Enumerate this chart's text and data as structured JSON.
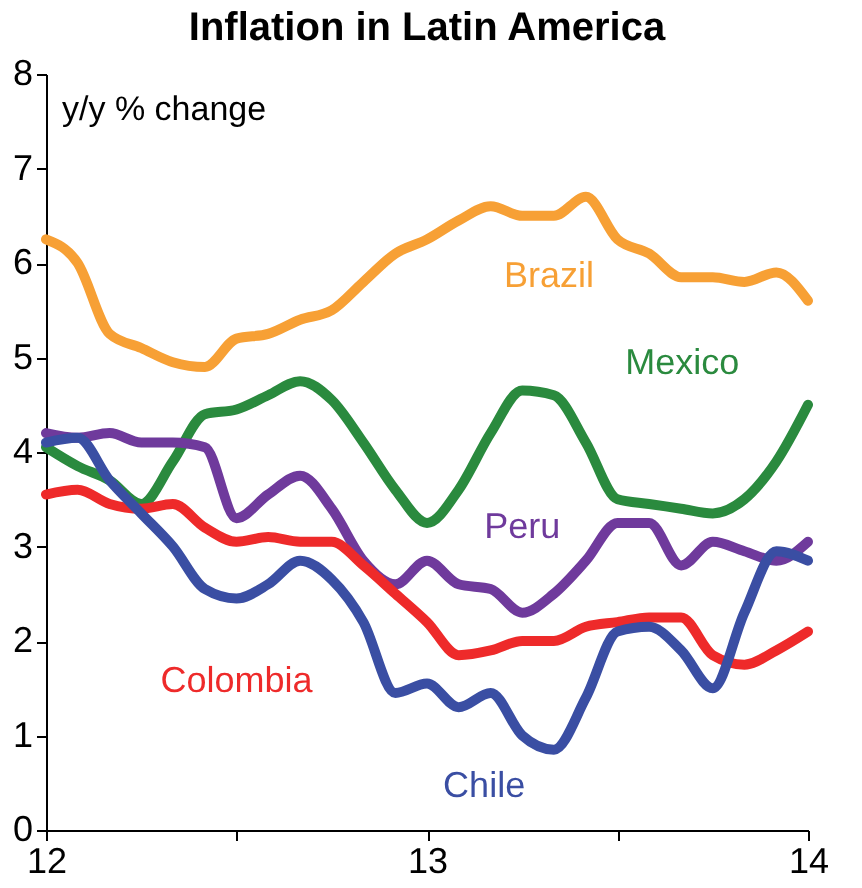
{
  "chart_data": {
    "type": "line",
    "title": "Inflation in Latin America",
    "ylabel": "y/y % change",
    "x": [
      12,
      12.083,
      12.167,
      12.25,
      12.333,
      12.417,
      12.5,
      12.583,
      12.667,
      12.75,
      12.833,
      12.917,
      13,
      13.083,
      13.167,
      13.25,
      13.333,
      13.417,
      13.5,
      13.583,
      13.667,
      13.75,
      13.833,
      13.917,
      14
    ],
    "series": [
      {
        "name": "Brazil",
        "color": "#f7a035",
        "values": [
          6.25,
          6.0,
          5.25,
          5.1,
          4.95,
          4.9,
          5.2,
          5.25,
          5.4,
          5.5,
          5.8,
          6.1,
          6.25,
          6.45,
          6.6,
          6.5,
          6.5,
          6.7,
          6.25,
          6.1,
          5.85,
          5.85,
          5.8,
          5.9,
          5.6
        ]
      },
      {
        "name": "Mexico",
        "color": "#2a8a3e",
        "values": [
          4.05,
          3.85,
          3.7,
          3.45,
          3.9,
          4.4,
          4.45,
          4.6,
          4.75,
          4.55,
          4.1,
          3.6,
          3.25,
          3.6,
          4.2,
          4.65,
          4.6,
          4.1,
          3.5,
          3.45,
          3.4,
          3.35,
          3.5,
          3.9,
          4.5
        ]
      },
      {
        "name": "Peru",
        "color": "#6f3a9c",
        "values": [
          4.2,
          4.15,
          4.2,
          4.1,
          4.1,
          4.05,
          3.3,
          3.55,
          3.75,
          3.4,
          2.85,
          2.6,
          2.85,
          2.6,
          2.55,
          2.3,
          2.5,
          2.85,
          3.25,
          3.25,
          2.8,
          3.05,
          2.95,
          2.85,
          3.05
        ]
      },
      {
        "name": "Colombia",
        "color": "#ee2a2a",
        "values": [
          3.55,
          3.6,
          3.45,
          3.4,
          3.45,
          3.2,
          3.05,
          3.1,
          3.05,
          3.05,
          2.8,
          2.5,
          2.2,
          1.85,
          1.9,
          2.0,
          2.0,
          2.15,
          2.2,
          2.25,
          2.25,
          1.85,
          1.75,
          1.9,
          2.1
        ]
      },
      {
        "name": "Chile",
        "color": "#3a4ea3",
        "values": [
          4.1,
          4.15,
          3.7,
          3.35,
          3.0,
          2.55,
          2.45,
          2.6,
          2.85,
          2.65,
          2.2,
          1.45,
          1.55,
          1.3,
          1.45,
          1.0,
          0.85,
          1.4,
          2.1,
          2.15,
          1.9,
          1.5,
          2.3,
          2.95,
          2.85
        ]
      }
    ],
    "xlim": [
      12,
      14
    ],
    "xticks": [
      12,
      {
        "value": 12.5,
        "label": null
      },
      13,
      {
        "value": 13.5,
        "label": null
      },
      14
    ],
    "ylim": [
      0,
      8
    ],
    "yticks": [
      0,
      1,
      2,
      3,
      4,
      5,
      6,
      7,
      8
    ],
    "grid": false,
    "legend": false,
    "marker": "none",
    "line_style": "solid"
  }
}
